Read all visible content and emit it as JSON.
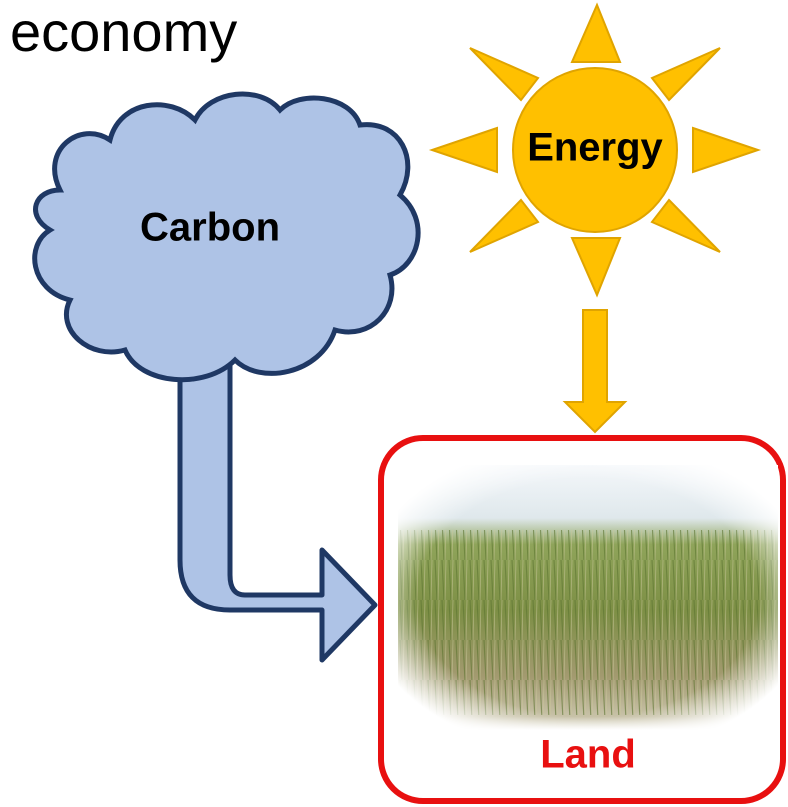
{
  "title": "economy",
  "nodes": [
    {
      "label": "Carbon"
    },
    {
      "label": "Energy"
    },
    {
      "label": "Land"
    }
  ]
}
